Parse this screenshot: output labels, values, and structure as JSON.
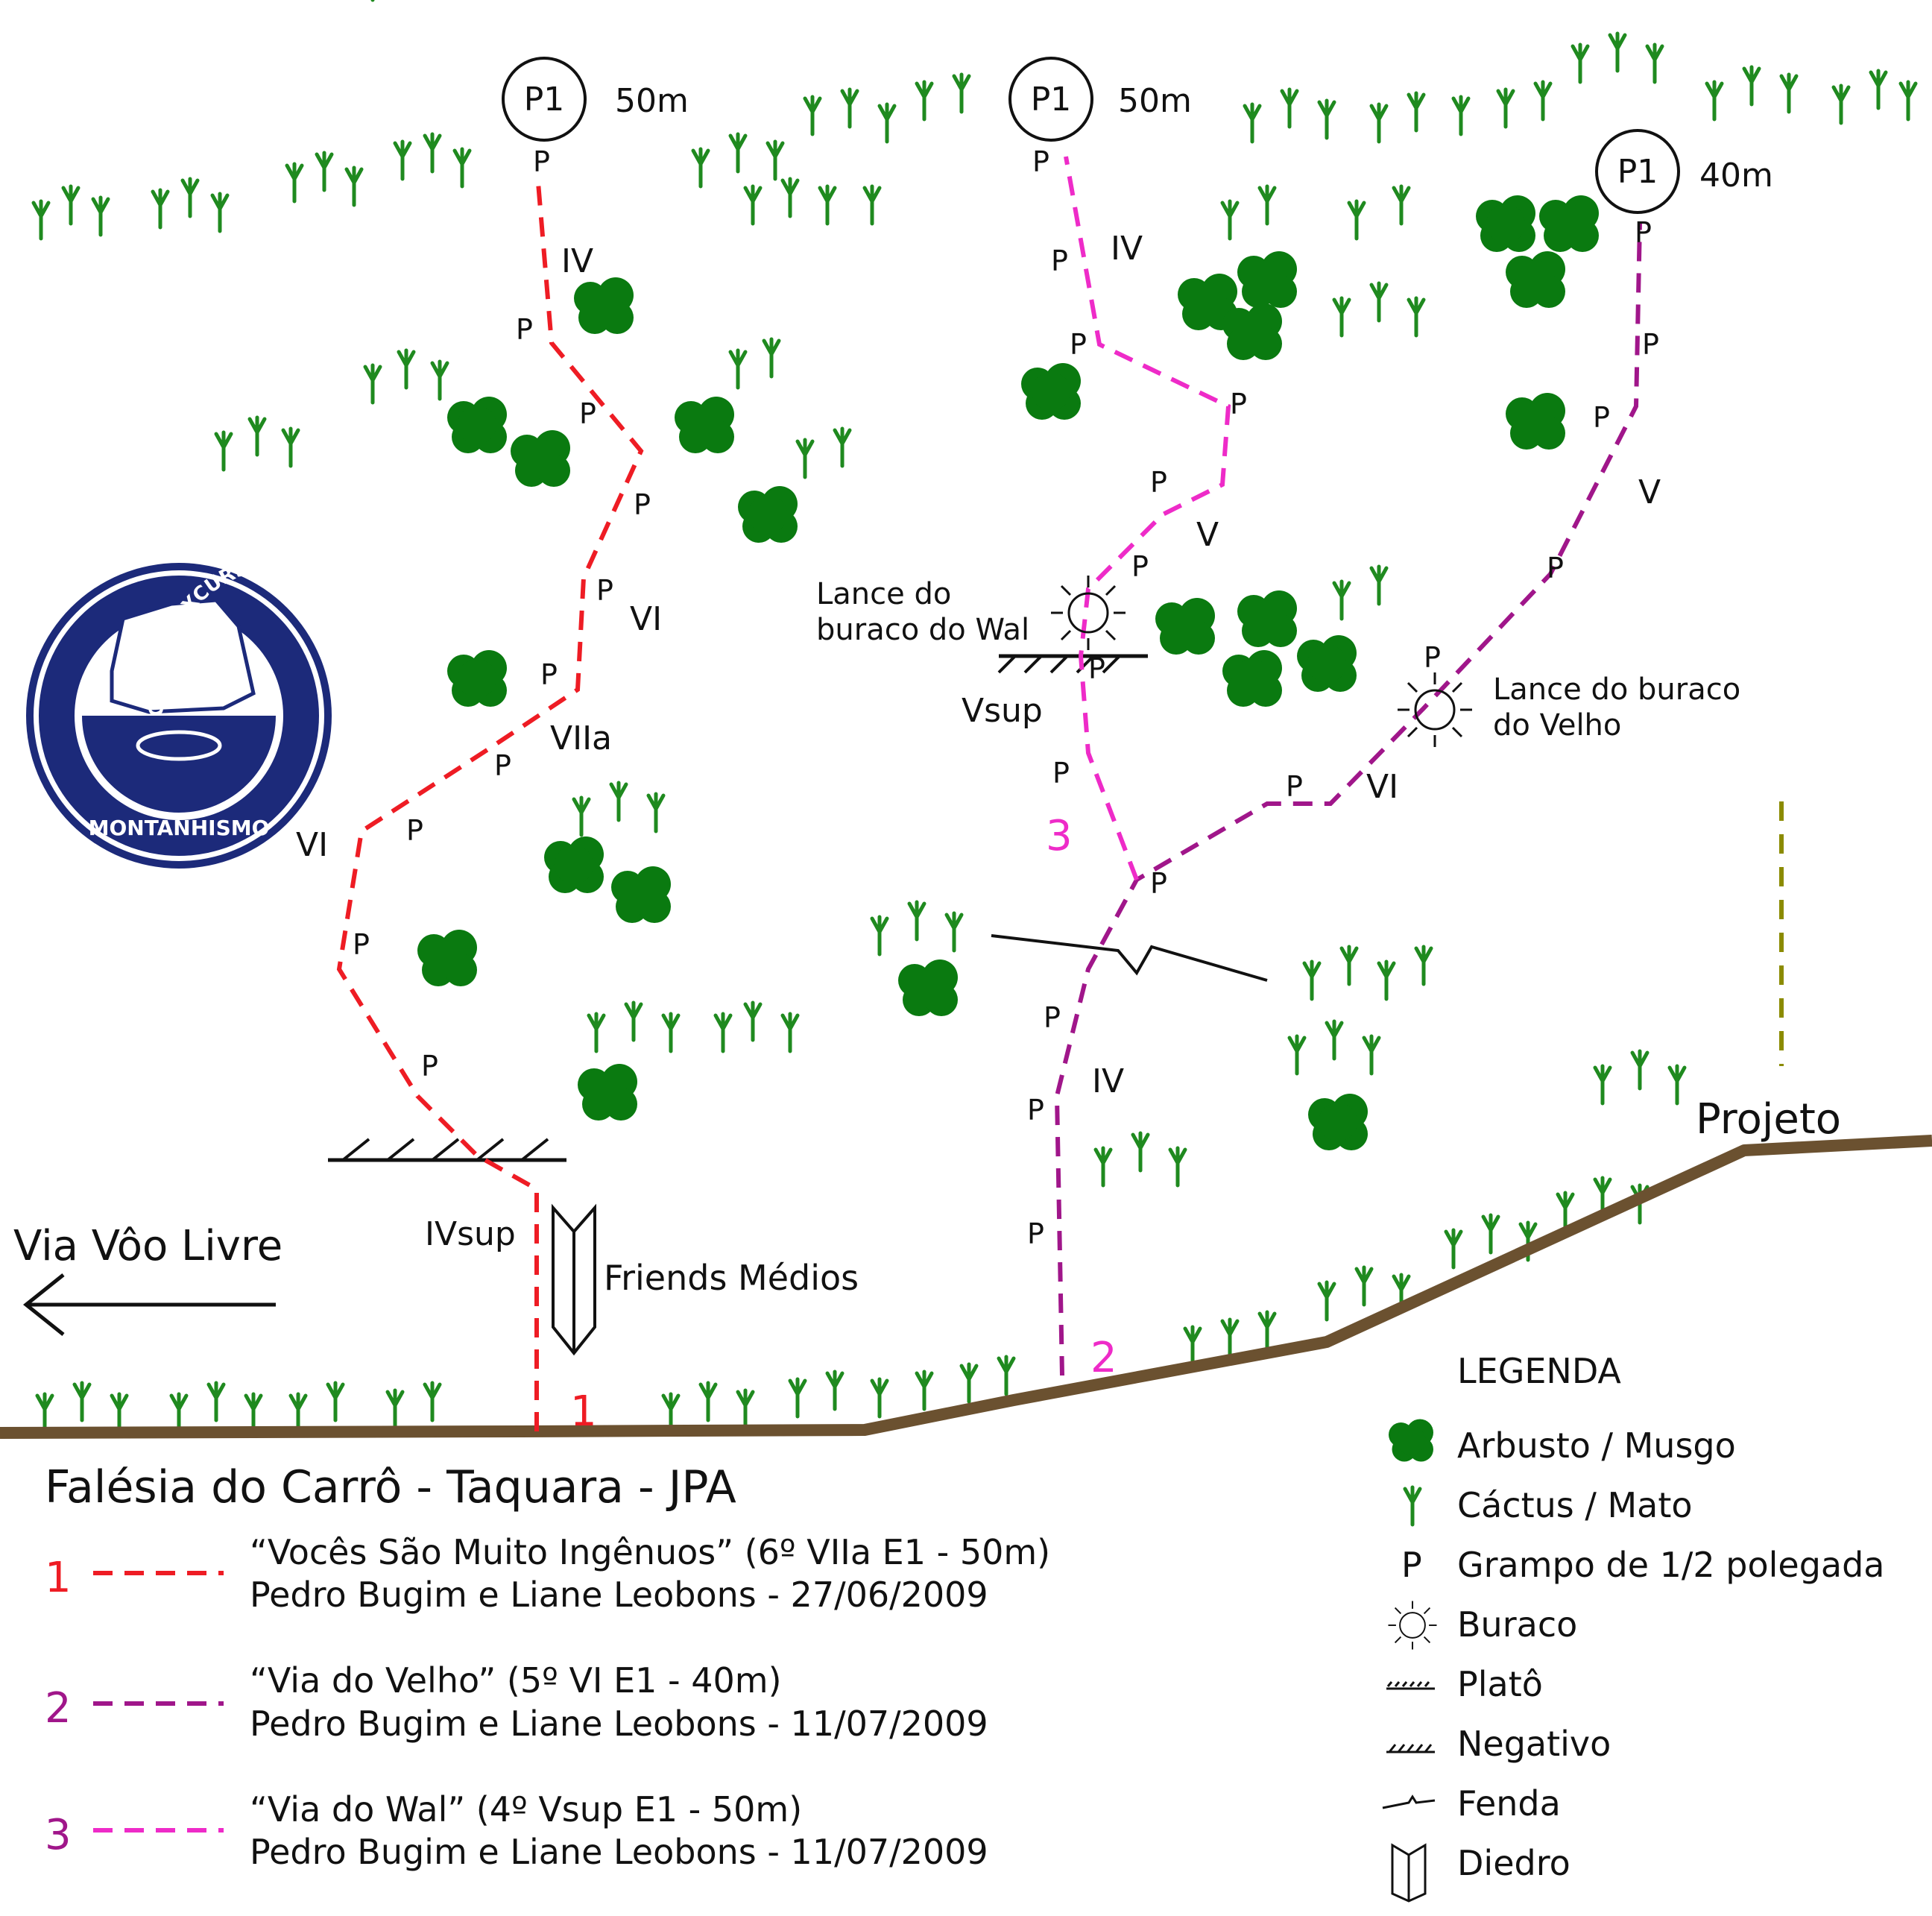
{
  "title": "Falésia do Carrô - Taquara - JPA",
  "colors": {
    "route1": "#ee1c24",
    "route2": "#a0168a",
    "route3": "#ee2bc8",
    "shrub": "#0a7a10",
    "cactus": "#1f8a1f",
    "ground": "#6b5130",
    "projeto": "#8b8b00"
  },
  "anchors": [
    {
      "label": "P1",
      "length": "50m"
    },
    {
      "label": "P1",
      "length": "50m"
    },
    {
      "label": "P1",
      "length": "40m"
    }
  ],
  "routes": [
    {
      "number": "1",
      "line1": "“Vocês São Muito Ingênuos” (6º VIIa E1 - 50m)",
      "line2": "Pedro Bugim e Liane Leobons - 27/06/2009",
      "grades": [
        "IV",
        "VI",
        "VIIa",
        "VI",
        "IVsup"
      ]
    },
    {
      "number": "2",
      "line1": "“Via do Velho” (5º VI E1 - 40m)",
      "line2": "Pedro Bugim e Liane Leobons - 11/07/2009",
      "grades": [
        "V",
        "VI",
        "IV"
      ]
    },
    {
      "number": "3",
      "line1": "“Via do Wal” (4º Vsup E1 - 50m)",
      "line2": "Pedro Bugim e Liane Leobons - 11/07/2009",
      "grades": [
        "IV",
        "V",
        "Vsup"
      ]
    }
  ],
  "pin_label": "P",
  "annotations": {
    "hole_wal": [
      "Lance do",
      "buraco do Wal"
    ],
    "hole_velho": [
      "Lance do buraco",
      "do Velho"
    ],
    "friends": "Friends Médios",
    "neighbor_route": "Via Vôo Livre",
    "projeto": "Projeto"
  },
  "legend": {
    "title": "LEGENDA",
    "items": [
      {
        "icon": "shrub-icon",
        "label": "Arbusto / Musgo"
      },
      {
        "icon": "cactus-icon",
        "label": "Cáctus / Mato"
      },
      {
        "icon": "pin-letter-icon",
        "label": "Grampo de 1/2 polegada"
      },
      {
        "icon": "hole-icon",
        "label": "Buraco"
      },
      {
        "icon": "plateau-icon",
        "label": "Platô"
      },
      {
        "icon": "overhang-icon",
        "label": "Negativo"
      },
      {
        "icon": "crack-icon",
        "label": "Fenda"
      },
      {
        "icon": "dihedral-icon",
        "label": "Diedro"
      }
    ]
  },
  "logo": {
    "ring_text": "CENTRO EXCURSIONISTA RIO DE JANEIRO",
    "bottom_text": "MONTANHISMO"
  }
}
